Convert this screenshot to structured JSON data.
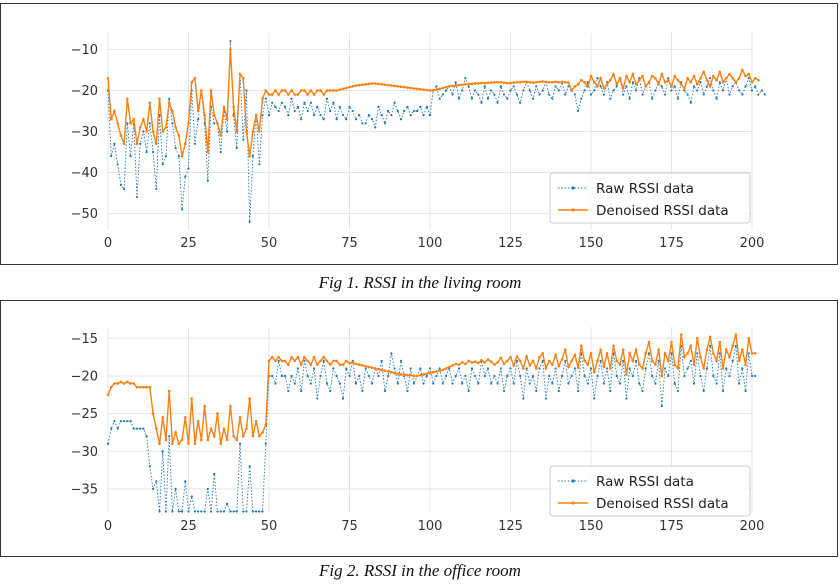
{
  "figures": [
    {
      "caption": "Fig 1. RSSI in the living room"
    },
    {
      "caption": "Fig 2. RSSI in the office room"
    }
  ],
  "colors": {
    "raw": "#1f77b4",
    "denoised": "#ff7f0e",
    "grid": "#e5e5e5",
    "plot_bg": "#ffffff"
  },
  "chart_data": [
    {
      "type": "line",
      "title": "",
      "xlabel": "",
      "ylabel": "",
      "xlim": [
        0,
        200
      ],
      "ylim": [
        -54,
        -6
      ],
      "xticks": [
        0,
        25,
        50,
        75,
        100,
        125,
        150,
        175,
        200
      ],
      "yticks": [
        -10,
        -20,
        -30,
        -40,
        -50
      ],
      "grid": true,
      "legend": "lower-right",
      "series": [
        {
          "name": "Raw RSSI data",
          "style": "dotted",
          "values": [
            -20,
            -36,
            -33,
            -38,
            -43,
            -44,
            -28,
            -36,
            -28,
            -46,
            -33,
            -30,
            -35,
            -28,
            -35,
            -44,
            -26,
            -38,
            -36,
            -22,
            -28,
            -34,
            -36,
            -49,
            -41,
            -39,
            -20,
            -33,
            -27,
            -20,
            -28,
            -42,
            -24,
            -28,
            -28,
            -35,
            -25,
            -30,
            -8,
            -26,
            -34,
            -16,
            -32,
            -20,
            -52,
            -36,
            -26,
            -38,
            -26,
            -22,
            -26,
            -23,
            -24,
            -25,
            -23,
            -24,
            -26,
            -22,
            -25,
            -24,
            -27,
            -23,
            -25,
            -23,
            -26,
            -24,
            -26,
            -27,
            -22,
            -25,
            -23,
            -27,
            -24,
            -26,
            -27,
            -24,
            -25,
            -27,
            -26,
            -28,
            -28,
            -26,
            -27,
            -29,
            -24,
            -26,
            -28,
            -25,
            -26,
            -23,
            -25,
            -27,
            -25,
            -24,
            -26,
            -25,
            -25,
            -24,
            -26,
            -24,
            -26,
            -20,
            -19,
            -22,
            -21,
            -20,
            -19,
            -21,
            -18,
            -22,
            -20,
            -17,
            -19,
            -22,
            -20,
            -21,
            -23,
            -19,
            -22,
            -20,
            -21,
            -23,
            -19,
            -21,
            -22,
            -20,
            -19,
            -21,
            -23,
            -20,
            -18,
            -20,
            -22,
            -19,
            -21,
            -20,
            -18,
            -21,
            -22,
            -19,
            -20,
            -18,
            -21,
            -19,
            -20,
            -21,
            -25,
            -22,
            -20,
            -18,
            -21,
            -20,
            -17,
            -19,
            -21,
            -18,
            -22,
            -20,
            -19,
            -17,
            -21,
            -19,
            -22,
            -18,
            -20,
            -17,
            -21,
            -19,
            -18,
            -22,
            -20,
            -18,
            -19,
            -21,
            -17,
            -20,
            -19,
            -22,
            -18,
            -20,
            -21,
            -23,
            -19,
            -20,
            -18,
            -21,
            -19,
            -17,
            -20,
            -22,
            -18,
            -20,
            -17,
            -21,
            -19,
            -18,
            -20,
            -21,
            -19,
            -17,
            -20,
            -19,
            -21,
            -20,
            -21
          ]
        },
        {
          "name": "Denoised RSSI data",
          "style": "solid",
          "values": [
            -17,
            -27,
            -25,
            -28,
            -31,
            -33,
            -22,
            -28,
            -27,
            -33,
            -29,
            -27,
            -30,
            -23,
            -30,
            -33,
            -22,
            -30,
            -29,
            -23,
            -25,
            -29,
            -31,
            -36,
            -33,
            -28,
            -18,
            -17,
            -25,
            -20,
            -26,
            -35,
            -20,
            -26,
            -28,
            -31,
            -24,
            -27,
            -10,
            -24,
            -30,
            -16,
            -17,
            -30,
            -36,
            -30,
            -26,
            -30,
            -22,
            -20,
            -21,
            -21,
            -20,
            -21,
            -20,
            -20,
            -21,
            -20,
            -21,
            -21,
            -20,
            -20,
            -21,
            -20,
            -21,
            -20,
            -20,
            -21,
            -20,
            -20,
            -20,
            -20,
            -19.8,
            -19.6,
            -19.4,
            -19.2,
            -19.0,
            -18.8,
            -18.7,
            -18.6,
            -18.5,
            -18.4,
            -18.3,
            -18.3,
            -18.4,
            -18.5,
            -18.6,
            -18.7,
            -18.8,
            -18.9,
            -19.0,
            -19.1,
            -19.2,
            -19.3,
            -19.4,
            -19.5,
            -19.6,
            -19.7,
            -19.8,
            -19.9,
            -20.0,
            -20.0,
            -19.8,
            -19.6,
            -19.4,
            -19.2,
            -19.0,
            -18.9,
            -18.8,
            -18.7,
            -18.6,
            -18.5,
            -18.4,
            -18.4,
            -18.3,
            -18.3,
            -18.2,
            -18.2,
            -18.1,
            -18.1,
            -18.0,
            -18.0,
            -18.0,
            -18.1,
            -18.2,
            -18.2,
            -18.1,
            -18.0,
            -18.0,
            -17.9,
            -17.9,
            -18.0,
            -18.1,
            -18.0,
            -17.9,
            -17.8,
            -17.9,
            -18.0,
            -18.0,
            -17.9,
            -18.0,
            -17.9,
            -18.0,
            -18.1,
            -20.0,
            -19.0,
            -18.5,
            -17.5,
            -18.0,
            -19.0,
            -16.5,
            -18.0,
            -19.0,
            -17.0,
            -19.5,
            -18.5,
            -17.5,
            -16.0,
            -18.5,
            -17.0,
            -19.5,
            -16.5,
            -18.0,
            -16.0,
            -18.5,
            -17.5,
            -16.5,
            -19.0,
            -18.0,
            -16.5,
            -17.0,
            -18.5,
            -16.0,
            -18.0,
            -17.5,
            -19.0,
            -16.5,
            -17.5,
            -18.5,
            -19.5,
            -17.0,
            -18.0,
            -16.5,
            -18.5,
            -17.0,
            -15.5,
            -17.5,
            -19.0,
            -16.5,
            -17.5,
            -15.5,
            -18.0,
            -17.0,
            -16.0,
            -17.0,
            -18.0,
            -17.0,
            -15.0,
            -16.5,
            -16.0,
            -18.0,
            -17.0,
            -17.5
          ]
        }
      ]
    },
    {
      "type": "line",
      "title": "",
      "xlabel": "",
      "ylabel": "",
      "xlim": [
        0,
        200
      ],
      "ylim": [
        -38.2,
        -13.5
      ],
      "xticks": [
        0,
        25,
        50,
        75,
        100,
        125,
        150,
        175,
        200
      ],
      "yticks": [
        -15,
        -20,
        -25,
        -30,
        -35
      ],
      "grid": true,
      "legend": "lower-right",
      "series": [
        {
          "name": "Raw RSSI data",
          "style": "dotted",
          "values": [
            -29,
            -27,
            -26,
            -27,
            -26,
            -26,
            -26,
            -26,
            -27,
            -27,
            -27,
            -27,
            -28,
            -32,
            -35,
            -34,
            -38,
            -30,
            -38,
            -28,
            -38,
            -35,
            -38,
            -38,
            -34,
            -38,
            -36,
            -38,
            -38,
            -38,
            -38,
            -35,
            -38,
            -33,
            -38,
            -38,
            -38,
            -37,
            -38,
            -38,
            -38,
            -29,
            -38,
            -38,
            -32,
            -38,
            -38,
            -38,
            -38,
            -29,
            -20,
            -20,
            -21,
            -18,
            -20,
            -20,
            -22,
            -20,
            -21,
            -19,
            -22,
            -18,
            -20,
            -21,
            -19,
            -23,
            -20,
            -18,
            -21,
            -22,
            -19,
            -20,
            -21,
            -23,
            -19,
            -20,
            -18,
            -21,
            -20,
            -22,
            -19,
            -20,
            -21,
            -19,
            -20,
            -18,
            -22,
            -20,
            -17,
            -19,
            -21,
            -18,
            -20,
            -22,
            -19,
            -21,
            -20,
            -19,
            -21,
            -20,
            -19,
            -21,
            -20,
            -19,
            -21,
            -20,
            -19,
            -21,
            -20,
            -19,
            -21,
            -20,
            -22,
            -19,
            -20,
            -21,
            -18,
            -20,
            -19,
            -21,
            -20,
            -21,
            -19,
            -22,
            -20,
            -19,
            -21,
            -18,
            -20,
            -23,
            -19,
            -21,
            -20,
            -22,
            -19,
            -18,
            -23,
            -20,
            -21,
            -19,
            -22,
            -20,
            -18,
            -21,
            -20,
            -19,
            -22,
            -17,
            -20,
            -21,
            -19,
            -23,
            -20,
            -18,
            -21,
            -19,
            -22,
            -17,
            -20,
            -21,
            -18,
            -23,
            -19,
            -20,
            -18,
            -21,
            -22,
            -19,
            -17,
            -20,
            -21,
            -18,
            -24,
            -19,
            -20,
            -17,
            -21,
            -22,
            -16,
            -20,
            -19,
            -18,
            -21,
            -17,
            -20,
            -22,
            -19,
            -16,
            -20,
            -21,
            -17,
            -22,
            -19,
            -20,
            -18,
            -16,
            -21,
            -19,
            -22,
            -17,
            -20,
            -20
          ]
        },
        {
          "name": "Denoised RSSI data",
          "style": "solid",
          "values": [
            -22.5,
            -21.5,
            -21,
            -21,
            -20.8,
            -21,
            -20.8,
            -21,
            -21,
            -21.5,
            -21.5,
            -21.5,
            -21.5,
            -21.5,
            -25,
            -27,
            -29,
            -25.5,
            -28.5,
            -22,
            -29,
            -27.5,
            -29,
            -28.5,
            -25.5,
            -29,
            -23,
            -29,
            -26,
            -28.5,
            -24,
            -28.5,
            -27,
            -28,
            -25,
            -29,
            -27,
            -28.5,
            -24,
            -28,
            -28.5,
            -25.5,
            -28,
            -27,
            -23,
            -28,
            -26,
            -28,
            -27.5,
            -26.5,
            -18,
            -17.5,
            -18,
            -17.5,
            -18,
            -18,
            -18.5,
            -17.5,
            -18,
            -17.5,
            -18.5,
            -17.5,
            -18,
            -18.5,
            -17.5,
            -18.5,
            -18,
            -17.5,
            -18,
            -18.5,
            -18,
            -18,
            -18.5,
            -18.5,
            -18,
            -18.3,
            -18.2,
            -18.4,
            -18.5,
            -18.6,
            -18.7,
            -18.8,
            -18.9,
            -19.0,
            -19.1,
            -19.2,
            -19.3,
            -19.4,
            -19.5,
            -19.6,
            -19.7,
            -19.8,
            -19.8,
            -19.9,
            -19.9,
            -20.0,
            -20.0,
            -19.9,
            -19.8,
            -19.7,
            -19.6,
            -19.5,
            -19.4,
            -19.3,
            -19.2,
            -19.0,
            -18.8,
            -18.6,
            -18.4,
            -18.5,
            -18.2,
            -18.4,
            -18.0,
            -18.2,
            -18.1,
            -18.3,
            -17.9,
            -18.2,
            -17.8,
            -18.1,
            -18.5,
            -18.2,
            -17.6,
            -18.4,
            -18.0,
            -17.5,
            -18.6,
            -17.4,
            -18.0,
            -19.0,
            -17.4,
            -18.6,
            -18.0,
            -19.0,
            -17.5,
            -17.0,
            -19.0,
            -18.0,
            -18.5,
            -17.2,
            -18.7,
            -17.8,
            -16.5,
            -18.8,
            -18.0,
            -17.2,
            -18.9,
            -16.0,
            -18.0,
            -18.5,
            -17.0,
            -19.5,
            -18.0,
            -16.5,
            -18.8,
            -17.0,
            -19.0,
            -16.0,
            -18.0,
            -18.5,
            -16.5,
            -19.8,
            -17.0,
            -18.0,
            -16.5,
            -18.5,
            -19.0,
            -17.0,
            -15.5,
            -18.0,
            -18.5,
            -16.5,
            -20.0,
            -17.0,
            -18.0,
            -15.5,
            -18.5,
            -19.0,
            -14.5,
            -17.5,
            -17.0,
            -16.0,
            -18.5,
            -15.0,
            -17.5,
            -19.0,
            -16.5,
            -14.8,
            -17.0,
            -18.0,
            -15.5,
            -19.0,
            -16.5,
            -17.5,
            -16.0,
            -14.5,
            -18.0,
            -16.5,
            -18.5,
            -15.0,
            -17.0,
            -17.0
          ]
        }
      ]
    }
  ]
}
